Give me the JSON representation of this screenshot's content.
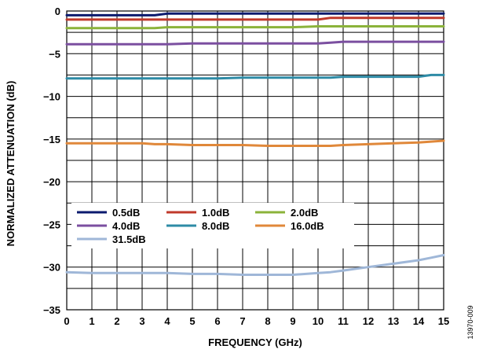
{
  "figure_id": "13970-009",
  "chart_data": {
    "type": "line",
    "xlabel": "FREQUENCY (GHz)",
    "ylabel": "NORMALIZED ATTENUATION (dB)",
    "xlim": [
      0,
      15
    ],
    "ylim": [
      -35,
      0
    ],
    "xticks": [
      0,
      1,
      2,
      3,
      4,
      5,
      6,
      7,
      8,
      9,
      10,
      11,
      12,
      13,
      14,
      15
    ],
    "yticks": [
      0,
      -5,
      -10,
      -15,
      -20,
      -25,
      -30,
      -35
    ],
    "grid": true,
    "legend_position": "lower-left inside plot",
    "x": [
      0,
      1,
      2,
      3,
      3.5,
      4,
      5,
      6,
      7,
      8,
      9,
      10,
      10.5,
      11,
      12,
      13,
      14,
      14.5,
      15
    ],
    "series": [
      {
        "name": "0.5dB",
        "color": "#0b1a6e",
        "values": [
          -0.5,
          -0.5,
          -0.5,
          -0.5,
          -0.5,
          -0.3,
          -0.3,
          -0.3,
          -0.3,
          -0.3,
          -0.3,
          -0.3,
          -0.3,
          -0.3,
          -0.3,
          -0.3,
          -0.3,
          -0.3,
          -0.3
        ]
      },
      {
        "name": "1.0dB",
        "color": "#c0392b",
        "values": [
          -1.0,
          -1.0,
          -1.0,
          -1.0,
          -1.0,
          -1.0,
          -1.0,
          -1.0,
          -1.0,
          -1.0,
          -1.0,
          -1.0,
          -0.8,
          -0.8,
          -0.8,
          -0.8,
          -0.8,
          -0.8,
          -0.8
        ]
      },
      {
        "name": "2.0dB",
        "color": "#8bb33a",
        "values": [
          -2.0,
          -2.0,
          -2.0,
          -2.0,
          -2.0,
          -1.9,
          -1.9,
          -1.9,
          -1.9,
          -1.9,
          -1.9,
          -1.8,
          -1.8,
          -1.8,
          -1.8,
          -1.8,
          -1.8,
          -1.8,
          -1.8
        ]
      },
      {
        "name": "4.0dB",
        "color": "#7b4fa0",
        "values": [
          -3.9,
          -3.9,
          -3.9,
          -3.9,
          -3.9,
          -3.9,
          -3.8,
          -3.8,
          -3.8,
          -3.8,
          -3.8,
          -3.8,
          -3.7,
          -3.6,
          -3.6,
          -3.6,
          -3.6,
          -3.6,
          -3.6
        ]
      },
      {
        "name": "8.0dB",
        "color": "#2e8ba6",
        "values": [
          -7.9,
          -7.9,
          -7.9,
          -7.9,
          -7.9,
          -7.9,
          -7.9,
          -7.9,
          -7.8,
          -7.8,
          -7.8,
          -7.8,
          -7.8,
          -7.7,
          -7.7,
          -7.7,
          -7.7,
          -7.5,
          -7.5
        ]
      },
      {
        "name": "16.0dB",
        "color": "#e0883a",
        "values": [
          -15.5,
          -15.5,
          -15.5,
          -15.5,
          -15.6,
          -15.6,
          -15.7,
          -15.7,
          -15.7,
          -15.8,
          -15.8,
          -15.8,
          -15.8,
          -15.7,
          -15.6,
          -15.5,
          -15.4,
          -15.3,
          -15.2
        ]
      },
      {
        "name": "31.5dB",
        "color": "#9fb7d8",
        "values": [
          -30.6,
          -30.7,
          -30.7,
          -30.7,
          -30.7,
          -30.7,
          -30.8,
          -30.8,
          -30.9,
          -30.9,
          -30.9,
          -30.7,
          -30.6,
          -30.4,
          -30.0,
          -29.6,
          -29.2,
          -28.9,
          -28.6
        ]
      }
    ]
  }
}
